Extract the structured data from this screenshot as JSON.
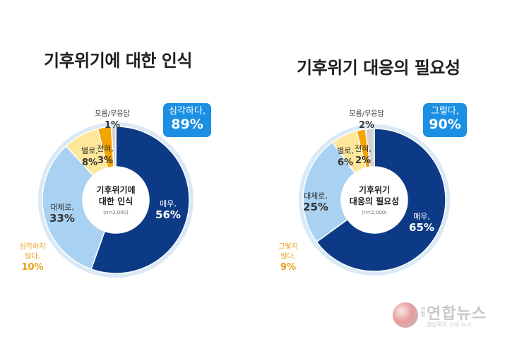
{
  "chart_data": [
    {
      "type": "pie",
      "title": "기후위기에 대한 인식",
      "center_label": [
        "기후위기에",
        "대한 인식"
      ],
      "center_note": "(n=2,000)",
      "callout": {
        "label": "심각하다,",
        "value": "89%"
      },
      "slices": [
        {
          "label": "매우,",
          "value": 56,
          "value_text": "56%",
          "color": "#0d3a86",
          "text_color": "#ffffff"
        },
        {
          "label": "대체로,",
          "value": 33,
          "value_text": "33%",
          "color": "#a9d2f2",
          "text_color": "#333333"
        },
        {
          "label": "별로,",
          "value": 8,
          "value_text": "8%",
          "color": "#fde79a",
          "text_color": "#333333"
        },
        {
          "label": "전혀,",
          "value": 3,
          "value_text": "3%",
          "color": "#f5a300",
          "text_color": "#333333"
        },
        {
          "label": "모름/무응답",
          "value": 1,
          "value_text": "1%",
          "color": "#d3d3d3",
          "text_color": "#333333"
        }
      ],
      "negative_note": {
        "label": [
          "심각하지",
          "않다,"
        ],
        "value": "10%",
        "color": "#e8a114"
      }
    },
    {
      "type": "pie",
      "title": "기후위기 대응의 필요성",
      "center_label": [
        "기후위기",
        "대응의 필요성"
      ],
      "center_note": "(n=2,000)",
      "callout": {
        "label": "그렇다,",
        "value": "90%"
      },
      "slices": [
        {
          "label": "매우,",
          "value": 65,
          "value_text": "65%",
          "color": "#0d3a86",
          "text_color": "#ffffff"
        },
        {
          "label": "대체로,",
          "value": 25,
          "value_text": "25%",
          "color": "#a9d2f2",
          "text_color": "#333333"
        },
        {
          "label": "별로,",
          "value": 6,
          "value_text": "6%",
          "color": "#fde79a",
          "text_color": "#333333"
        },
        {
          "label": "전혀,",
          "value": 2,
          "value_text": "2%",
          "color": "#f5a300",
          "text_color": "#333333"
        },
        {
          "label": "모름/무응답",
          "value": 2,
          "value_text": "2%",
          "color": "#d3d3d3",
          "text_color": "#333333"
        }
      ],
      "negative_note": {
        "label": [
          "그렇지",
          "않다,"
        ],
        "value": "9%",
        "color": "#e8a114"
      }
    }
  ],
  "colors": {
    "ring": "#dbe9f6",
    "callout": "#1a8fe3"
  },
  "watermark": {
    "name": "연합뉴스",
    "sub": "연합",
    "tagline": "경상북도 신문 뉴스"
  }
}
